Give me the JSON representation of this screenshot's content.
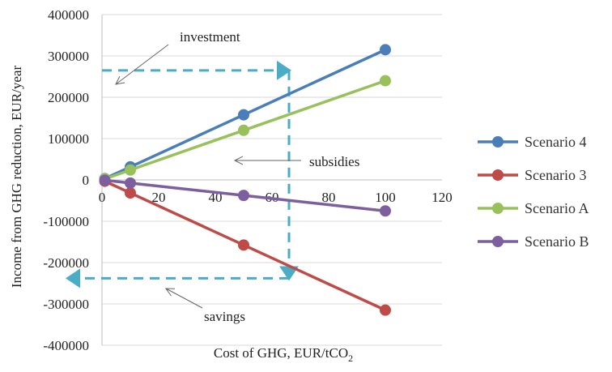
{
  "chart_data": {
    "type": "line",
    "xlabel": "Cost of GHG, EUR/tCO",
    "xlabel_sub": "2",
    "ylabel": "Income from GHG reduction, EUR/year",
    "xlim": [
      0,
      120
    ],
    "ylim": [
      -400000,
      400000
    ],
    "x_ticks": [
      0,
      20,
      40,
      60,
      80,
      100,
      120
    ],
    "x_tick_labels": [
      "0",
      "20",
      "40",
      "60",
      "80",
      "100",
      "120"
    ],
    "y_ticks": [
      -400000,
      -300000,
      -200000,
      -100000,
      0,
      100000,
      200000,
      300000,
      400000
    ],
    "y_tick_labels": [
      "-400000",
      "-300000",
      "-200000",
      "-100000",
      "0",
      "100000",
      "200000",
      "300000",
      "400000"
    ],
    "grid": "horizontal",
    "legend_position": "right",
    "series": [
      {
        "name": "Scenario 4",
        "color": "#4a7ebb",
        "x": [
          1,
          10,
          50,
          100
        ],
        "y": [
          3150,
          31500,
          157500,
          315000
        ]
      },
      {
        "name": "Scenario 3",
        "color": "#be4b48",
        "x": [
          1,
          10,
          50,
          100
        ],
        "y": [
          -3150,
          -31500,
          -157500,
          -315000
        ]
      },
      {
        "name": "Scenario A",
        "color": "#98c15c",
        "x": [
          1,
          10,
          50,
          100
        ],
        "y": [
          2400,
          24000,
          120000,
          240000
        ]
      },
      {
        "name": "Scenario B",
        "color": "#7d5fa0",
        "x": [
          1,
          10,
          50,
          100
        ],
        "y": [
          -750,
          -7500,
          -37500,
          -75000
        ]
      }
    ],
    "annotations": [
      {
        "text": "investment"
      },
      {
        "text": "subsidies"
      },
      {
        "text": "savings"
      }
    ],
    "guide_color": "#4bacc6",
    "guide_lines": [
      {
        "from": [
          0,
          265000
        ],
        "to": [
          66,
          265000
        ]
      },
      {
        "from": [
          66,
          265000
        ],
        "to": [
          66,
          -238000
        ]
      },
      {
        "from": [
          66,
          -238000
        ],
        "to": [
          -12,
          -238000
        ]
      }
    ]
  }
}
